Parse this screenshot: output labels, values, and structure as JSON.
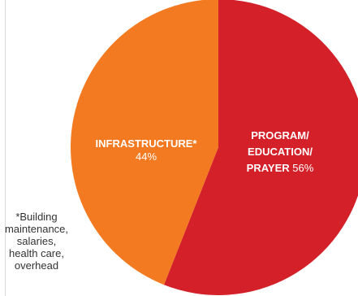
{
  "chart_data": {
    "type": "pie",
    "title": "",
    "slices": [
      {
        "label_lines": [
          "PROGRAM/",
          "EDUCATION/",
          "PRAYER"
        ],
        "value": 56,
        "value_text": "56%",
        "color": "#d42029"
      },
      {
        "label_lines": [
          "INFRASTRUCTURE*"
        ],
        "value": 44,
        "value_text": "44%",
        "color": "#f37a20"
      }
    ],
    "footnote": "*Building\nmaintenance,\nsalaries,\nhealth care,\noverhead"
  }
}
